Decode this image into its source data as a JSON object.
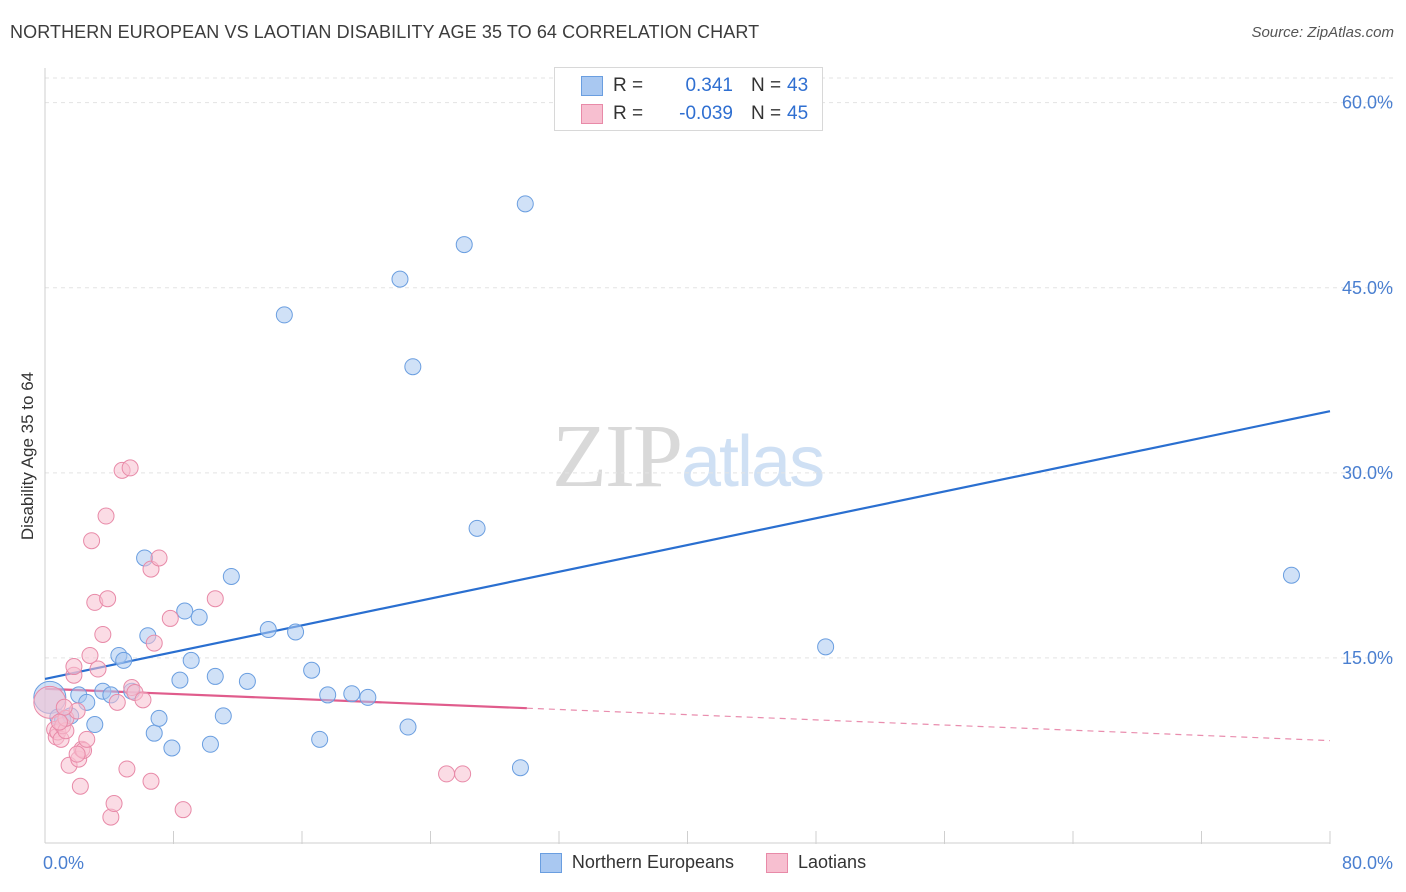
{
  "header": {
    "title": "NORTHERN EUROPEAN VS LAOTIAN DISABILITY AGE 35 TO 64 CORRELATION CHART",
    "source": "Source: ZipAtlas.com"
  },
  "watermark": {
    "zip": "ZIP",
    "atlas": "atlas"
  },
  "legend": {
    "rows": [
      {
        "r_label": "R =",
        "r_value": "0.341",
        "n_label": "N =",
        "n_value": "43",
        "color": "#a9c8f1",
        "border": "#6a9ee0"
      },
      {
        "r_label": "R =",
        "r_value": "-0.039",
        "n_label": "N =",
        "n_value": "45",
        "color": "#f7bfd0",
        "border": "#e88aa8"
      }
    ]
  },
  "bottom_legend": [
    {
      "label": "Northern Europeans",
      "color": "#a9c8f1",
      "border": "#6a9ee0"
    },
    {
      "label": "Laotians",
      "color": "#f7bfd0",
      "border": "#e88aa8"
    }
  ],
  "chart_data": {
    "type": "scatter",
    "title": "NORTHERN EUROPEAN VS LAOTIAN DISABILITY AGE 35 TO 64 CORRELATION CHART",
    "xlabel": "",
    "ylabel": "Disability Age 35 to 64",
    "xlim": [
      0,
      80
    ],
    "ylim": [
      0,
      62
    ],
    "x_tick_labels": [
      "0.0%",
      "80.0%"
    ],
    "y_ticks": [
      15,
      30,
      45,
      60
    ],
    "y_tick_labels": [
      "15.0%",
      "30.0%",
      "45.0%",
      "60.0%"
    ],
    "x_minor_ticks": [
      8,
      16,
      24,
      32,
      40,
      48,
      56,
      64,
      72,
      80
    ],
    "grid": true,
    "series": [
      {
        "name": "Northern Europeans",
        "color": "#a9c8f1",
        "stroke": "#6a9ee0",
        "trend_color": "#2a6fd0",
        "trend": {
          "x0": 0,
          "y0": 13.3,
          "x1": 80,
          "y1": 35.0,
          "dashed_from": null
        },
        "points": [
          [
            0.3,
            11.8,
            "large"
          ],
          [
            0.8,
            10.2
          ],
          [
            1.1,
            10.0
          ],
          [
            1.6,
            10.3
          ],
          [
            2.1,
            12.0
          ],
          [
            2.6,
            11.4
          ],
          [
            3.1,
            9.6
          ],
          [
            3.6,
            12.3
          ],
          [
            4.1,
            12.0
          ],
          [
            4.6,
            15.2
          ],
          [
            4.9,
            14.8
          ],
          [
            5.4,
            12.3
          ],
          [
            6.2,
            23.1
          ],
          [
            6.4,
            16.8
          ],
          [
            6.8,
            8.9
          ],
          [
            7.1,
            10.1
          ],
          [
            7.9,
            7.7
          ],
          [
            8.4,
            13.2
          ],
          [
            8.7,
            18.8
          ],
          [
            9.1,
            14.8
          ],
          [
            9.6,
            18.3
          ],
          [
            10.3,
            8.0
          ],
          [
            10.6,
            13.5
          ],
          [
            11.1,
            10.3
          ],
          [
            11.6,
            21.6
          ],
          [
            12.6,
            13.1
          ],
          [
            13.9,
            17.3
          ],
          [
            14.9,
            42.8
          ],
          [
            15.6,
            17.1
          ],
          [
            16.6,
            14.0
          ],
          [
            17.1,
            8.4
          ],
          [
            17.6,
            12.0
          ],
          [
            19.1,
            12.1
          ],
          [
            20.1,
            11.8
          ],
          [
            22.1,
            45.7
          ],
          [
            22.6,
            9.4
          ],
          [
            22.9,
            38.6
          ],
          [
            26.1,
            48.5
          ],
          [
            26.9,
            25.5
          ],
          [
            29.6,
            6.1
          ],
          [
            29.9,
            51.8
          ],
          [
            48.6,
            15.9
          ],
          [
            77.6,
            21.7
          ]
        ]
      },
      {
        "name": "Laotians",
        "color": "#f7bfd0",
        "stroke": "#e88aa8",
        "trend_color": "#e05c8c",
        "trend": {
          "x0": 0,
          "y0": 12.5,
          "x1": 80,
          "y1": 8.3,
          "dashed_from": 30
        },
        "points": [
          [
            0.3,
            11.4,
            "large"
          ],
          [
            0.6,
            9.2
          ],
          [
            0.7,
            8.6
          ],
          [
            0.8,
            9.0
          ],
          [
            1.0,
            8.4
          ],
          [
            1.1,
            9.5
          ],
          [
            1.3,
            9.1
          ],
          [
            1.3,
            10.1
          ],
          [
            1.5,
            6.3
          ],
          [
            1.8,
            13.6
          ],
          [
            1.8,
            14.3
          ],
          [
            2.0,
            10.7
          ],
          [
            2.1,
            6.8
          ],
          [
            2.2,
            4.6
          ],
          [
            2.3,
            7.6
          ],
          [
            2.4,
            7.5
          ],
          [
            2.6,
            8.4
          ],
          [
            2.8,
            15.2
          ],
          [
            2.9,
            24.5
          ],
          [
            3.1,
            19.5
          ],
          [
            3.3,
            14.1
          ],
          [
            3.6,
            16.9
          ],
          [
            3.8,
            26.5
          ],
          [
            3.9,
            19.8
          ],
          [
            4.1,
            2.1
          ],
          [
            4.3,
            3.2
          ],
          [
            4.5,
            11.4
          ],
          [
            4.8,
            30.2
          ],
          [
            5.1,
            6.0
          ],
          [
            5.3,
            30.4
          ],
          [
            5.4,
            12.6
          ],
          [
            5.6,
            12.2
          ],
          [
            6.1,
            11.6
          ],
          [
            6.6,
            5.0
          ],
          [
            6.6,
            22.2
          ],
          [
            6.8,
            16.2
          ],
          [
            7.1,
            23.1
          ],
          [
            7.8,
            18.2
          ],
          [
            8.6,
            2.7
          ],
          [
            10.6,
            19.8
          ],
          [
            25.0,
            5.6
          ],
          [
            26.0,
            5.6
          ],
          [
            1.2,
            11.0
          ],
          [
            0.9,
            9.8
          ],
          [
            2.0,
            7.2
          ]
        ]
      }
    ]
  }
}
